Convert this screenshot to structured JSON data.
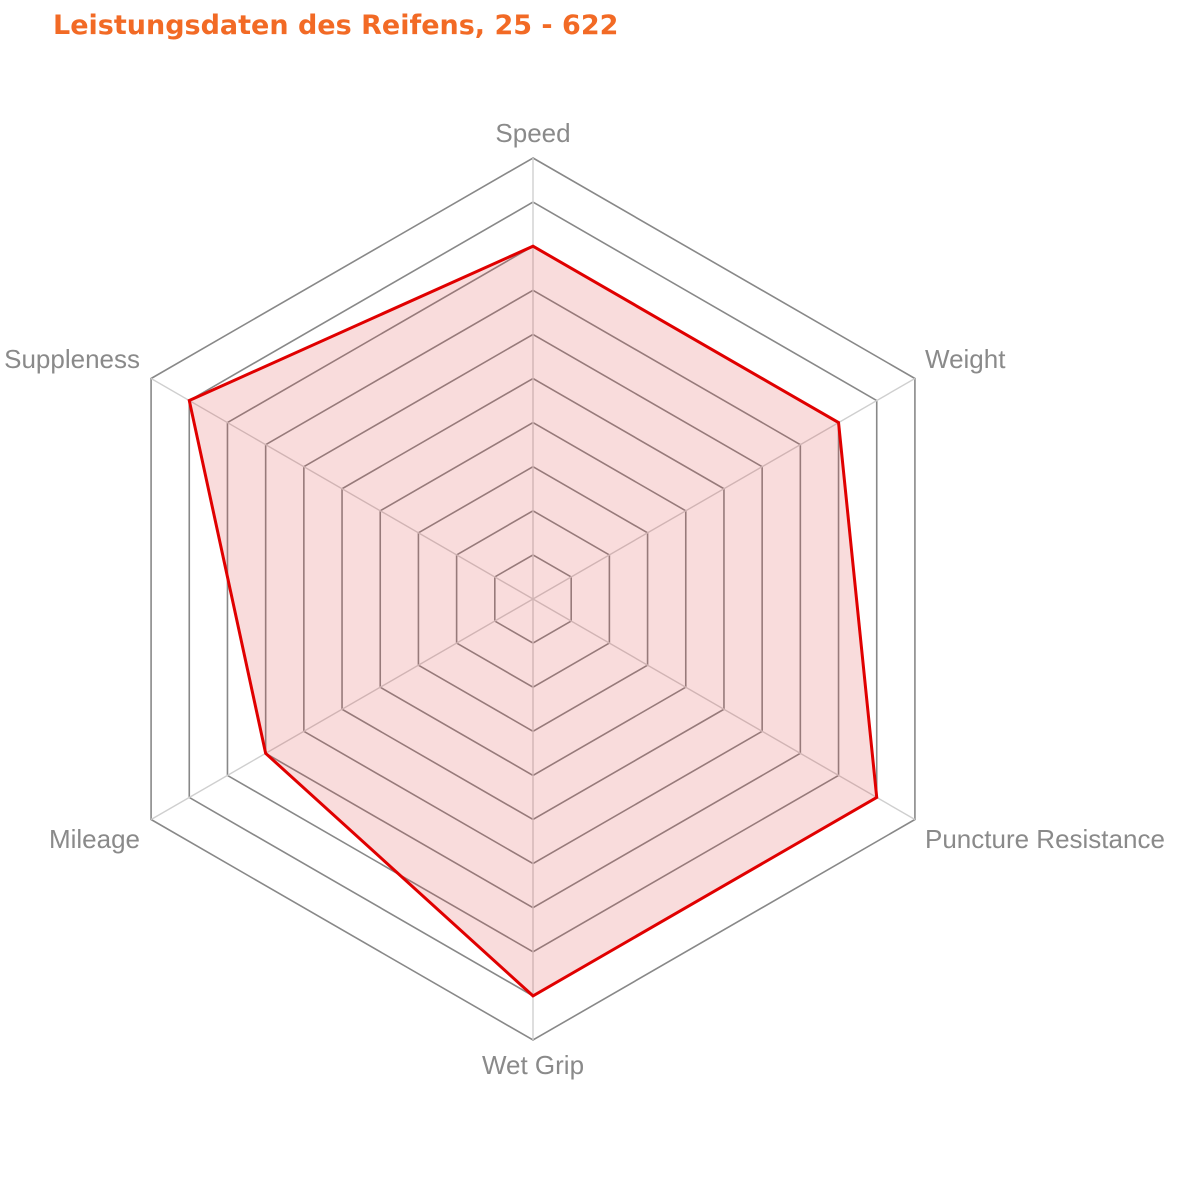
{
  "title": "Leistungsdaten des Reifens, 25 - 622",
  "colors": {
    "title": "#f26a25",
    "series_line": "#e00000",
    "series_fill": "rgba(224,60,60,0.18)",
    "grid": "#888888",
    "spoke": "#cfcfcf",
    "label": "#8a8a8a"
  },
  "chart_data": {
    "type": "radar",
    "title": "Leistungsdaten des Reifens, 25 - 622",
    "categories": [
      "Speed",
      "Weight",
      "Puncture Resistance",
      "Wet Grip",
      "Mileage",
      "Suppleness"
    ],
    "series": [
      {
        "name": "25 - 622",
        "values": [
          8,
          8,
          9,
          9,
          7,
          9
        ]
      }
    ],
    "rlim": [
      0,
      10
    ],
    "rings": 10,
    "grid": true,
    "legend": "none"
  }
}
